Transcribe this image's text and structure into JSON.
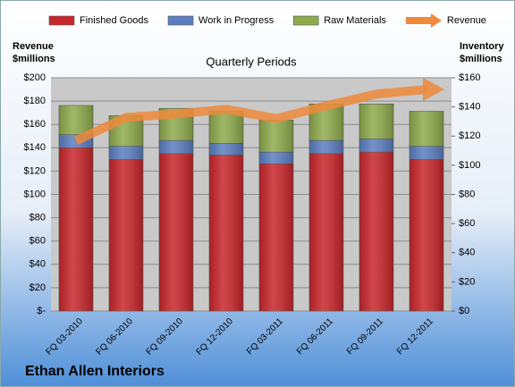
{
  "chart_data": {
    "type": "bar",
    "title": "Quarterly Periods",
    "footer": "Ethan Allen Interiors",
    "y_axis_label": [
      "Revenue",
      "$millions"
    ],
    "y2_axis_label": [
      "Inventory",
      "$millions"
    ],
    "categories": [
      "FQ 03-2010",
      "FQ 06-2010",
      "FQ 09-2010",
      "FQ 12-2010",
      "FQ 03-2011",
      "FQ 06-2011",
      "FQ 09-2011",
      "FQ 12-2011"
    ],
    "stacked": true,
    "legend": "top",
    "series": [
      {
        "name": "Finished Goods",
        "color": "#c8262b",
        "axis": "y2",
        "values": [
          112,
          104,
          108,
          107,
          101,
          108,
          109,
          104
        ]
      },
      {
        "name": "Work in Progress",
        "color": "#5b7ec0",
        "axis": "y2",
        "values": [
          9,
          9,
          9,
          8,
          8,
          9,
          9,
          9
        ]
      },
      {
        "name": "Raw Materials",
        "color": "#8eab4c",
        "axis": "y2",
        "values": [
          20,
          21,
          22,
          22,
          22,
          25,
          24,
          24
        ]
      },
      {
        "name": "Revenue",
        "color": "#ef8a3c",
        "type": "line",
        "values": [
          146,
          166,
          169,
          173,
          165,
          176,
          186,
          190
        ]
      }
    ],
    "ylim": [
      0,
      200
    ],
    "yticks": [
      {
        "value": 0,
        "label": "$-"
      },
      {
        "value": 20,
        "label": "$20"
      },
      {
        "value": 40,
        "label": "$40"
      },
      {
        "value": 60,
        "label": "$60"
      },
      {
        "value": 80,
        "label": "$80"
      },
      {
        "value": 100,
        "label": "$100"
      },
      {
        "value": 120,
        "label": "$120"
      },
      {
        "value": 140,
        "label": "$140"
      },
      {
        "value": 160,
        "label": "$160"
      },
      {
        "value": 180,
        "label": "$180"
      },
      {
        "value": 200,
        "label": "$200"
      }
    ],
    "y2lim": [
      0,
      160
    ],
    "y2ticks": [
      {
        "value": 0,
        "label": "$0"
      },
      {
        "value": 20,
        "label": "$20"
      },
      {
        "value": 40,
        "label": "$40"
      },
      {
        "value": 60,
        "label": "$60"
      },
      {
        "value": 80,
        "label": "$80"
      },
      {
        "value": 100,
        "label": "$100"
      },
      {
        "value": 120,
        "label": "$120"
      },
      {
        "value": 140,
        "label": "$140"
      },
      {
        "value": 160,
        "label": "$160"
      }
    ],
    "grid": true
  }
}
